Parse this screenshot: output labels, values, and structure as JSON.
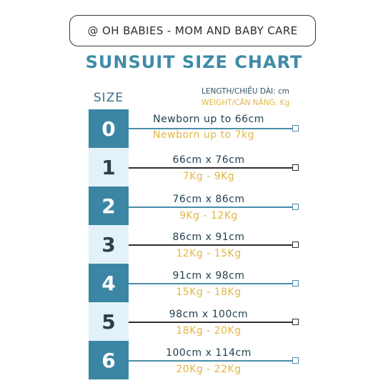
{
  "brand": "@ OH BABIES - MOM AND BABY CARE",
  "title": "SUNSUIT SIZE CHART",
  "size_heading": "SIZE",
  "legend": {
    "length": "LENGTH/CHIỀU DÀI: cm",
    "weight": "WEIGHT/CÂN NẶNG: Kg"
  },
  "colors": {
    "accent": "#3c86a5",
    "title": "#3f8ba6",
    "weight_text": "#e2b642",
    "light_block": "#e3f2f9"
  },
  "sizes": [
    {
      "size": "0",
      "length": "Newborn up to 66cm",
      "weight": "Newborn up to 7kg"
    },
    {
      "size": "1",
      "length": "66cm x 76cm",
      "weight": "7Kg - 9Kg"
    },
    {
      "size": "2",
      "length": "76cm x 86cm",
      "weight": "9Kg - 12Kg"
    },
    {
      "size": "3",
      "length": "86cm x 91cm",
      "weight": "12Kg - 15Kg"
    },
    {
      "size": "4",
      "length": "91cm x 98cm",
      "weight": "15Kg - 18Kg"
    },
    {
      "size": "5",
      "length": "98cm x 100cm",
      "weight": "18Kg - 20Kg"
    },
    {
      "size": "6",
      "length": "100cm x 114cm",
      "weight": "20Kg - 22Kg"
    }
  ]
}
